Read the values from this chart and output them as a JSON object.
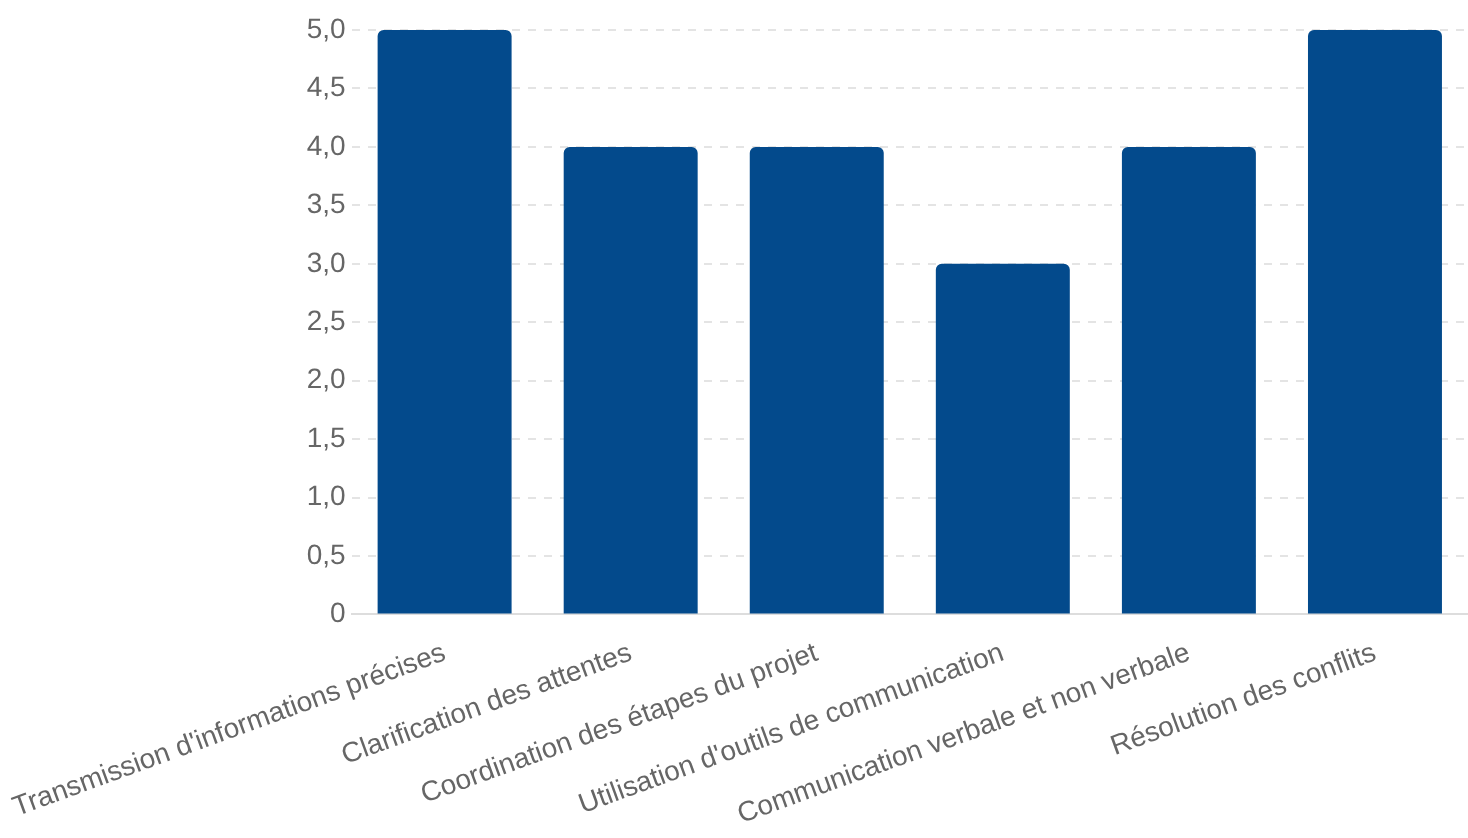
{
  "chart_data": {
    "type": "bar",
    "categories": [
      "Transmission d'informations précises",
      "Clarification des attentes",
      "Coordination des étapes du projet",
      "Utilisation d'outils de communication",
      "Communication verbale et non verbale",
      "Résolution des conflits"
    ],
    "values": [
      5,
      4,
      4,
      3,
      4,
      5
    ],
    "color": "#034a8c",
    "ylim": [
      0,
      5
    ],
    "yticks": [
      0,
      {
        "value": 0.5,
        "label": "0,5"
      },
      {
        "value": 1,
        "label": "1,0"
      },
      {
        "value": 1.5,
        "label": "1,5"
      },
      {
        "value": 2,
        "label": "2,0"
      },
      {
        "value": 2.5,
        "label": "2,5"
      },
      {
        "value": 3,
        "label": "3,0"
      },
      {
        "value": 3.5,
        "label": "3,5"
      },
      {
        "value": 4,
        "label": "4,0"
      },
      {
        "value": 4.5,
        "label": "4,5"
      },
      {
        "value": 5,
        "label": "5,0"
      }
    ],
    "grid": "y"
  }
}
